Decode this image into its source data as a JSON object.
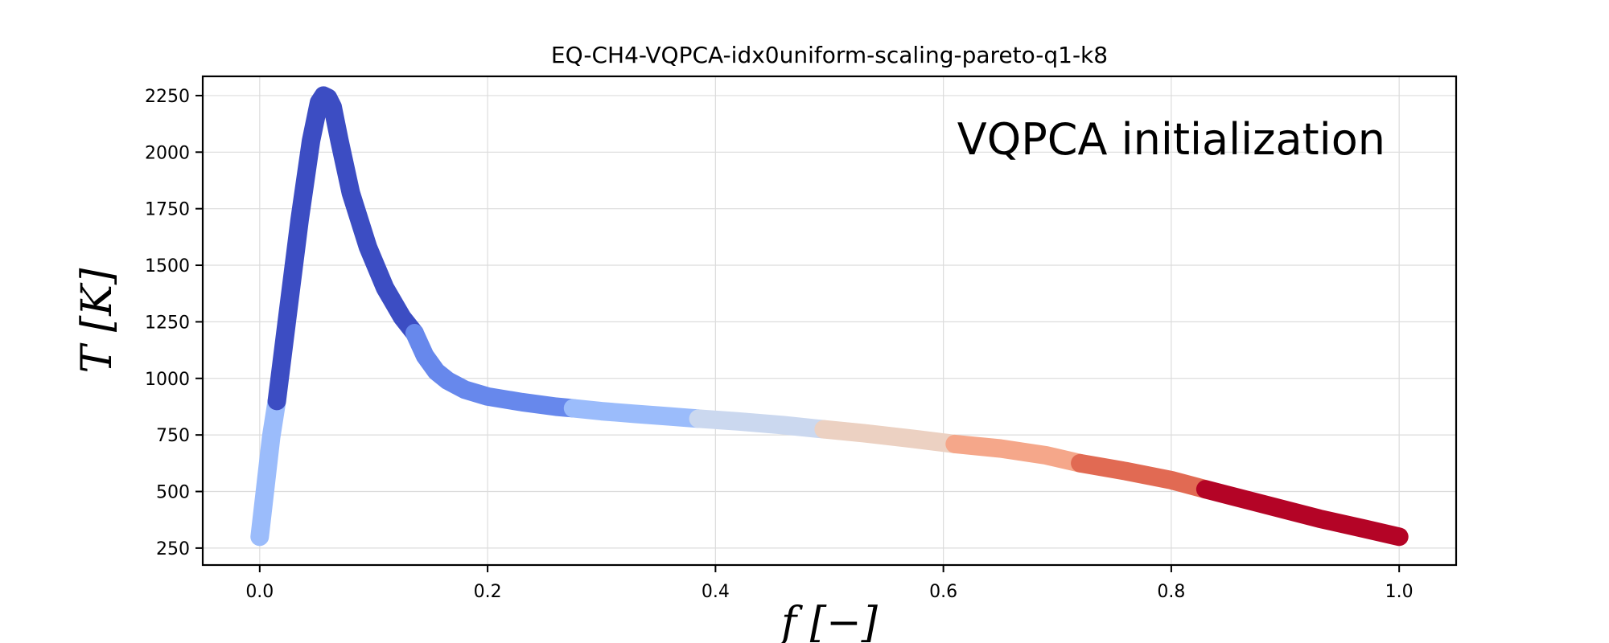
{
  "chart_data": {
    "type": "line",
    "title": "EQ-CH4-VQPCA-idx0uniform-scaling-pareto-q1-k8",
    "annotation": "VQPCA initialization",
    "xlabel": "f [−]",
    "ylabel": "T [K]",
    "xlim": [
      -0.05,
      1.05
    ],
    "ylim": [
      175,
      2335
    ],
    "xticks": [
      0.0,
      0.2,
      0.4,
      0.6,
      0.8,
      1.0
    ],
    "xtick_labels": [
      "0.0",
      "0.2",
      "0.4",
      "0.6",
      "0.8",
      "1.0"
    ],
    "yticks": [
      250,
      500,
      750,
      1000,
      1250,
      1500,
      1750,
      2000,
      2250
    ],
    "ytick_labels": [
      "250",
      "500",
      "750",
      "1000",
      "1250",
      "1500",
      "1750",
      "2000",
      "2250"
    ],
    "grid": true,
    "legend": false,
    "colormap": "coolwarm",
    "series": [
      {
        "cluster": 1,
        "color": "#9bbcfb",
        "x": [
          0.0,
          0.005,
          0.01,
          0.015
        ],
        "y": [
          300,
          520,
          740,
          900
        ]
      },
      {
        "cluster": 2,
        "color": "#3c4dc3",
        "x": [
          0.015,
          0.025,
          0.035,
          0.045,
          0.052,
          0.056,
          0.06,
          0.064,
          0.07,
          0.08,
          0.095,
          0.11,
          0.125,
          0.136
        ],
        "y": [
          900,
          1300,
          1700,
          2050,
          2220,
          2250,
          2240,
          2200,
          2050,
          1820,
          1580,
          1400,
          1270,
          1200
        ]
      },
      {
        "cluster": 3,
        "color": "#6788ec",
        "x": [
          0.136,
          0.145,
          0.155,
          0.165,
          0.18,
          0.2,
          0.23,
          0.26,
          0.275
        ],
        "y": [
          1200,
          1100,
          1030,
          990,
          950,
          920,
          895,
          875,
          868
        ]
      },
      {
        "cluster": 4,
        "color": "#9bbcfb",
        "x": [
          0.275,
          0.3,
          0.33,
          0.36,
          0.385
        ],
        "y": [
          868,
          855,
          843,
          832,
          822
        ]
      },
      {
        "cluster": 5,
        "color": "#cbd8ef",
        "x": [
          0.385,
          0.42,
          0.46,
          0.495
        ],
        "y": [
          822,
          810,
          793,
          775
        ]
      },
      {
        "cluster": 6,
        "color": "#ecd1c2",
        "x": [
          0.495,
          0.53,
          0.57,
          0.61
        ],
        "y": [
          775,
          758,
          735,
          710
        ]
      },
      {
        "cluster": 7,
        "color": "#f5a78a",
        "x": [
          0.61,
          0.65,
          0.69,
          0.72
        ],
        "y": [
          710,
          690,
          660,
          625
        ]
      },
      {
        "cluster": 8,
        "color": "#e16a53",
        "x": [
          0.72,
          0.76,
          0.8,
          0.83
        ],
        "y": [
          625,
          590,
          550,
          510
        ]
      },
      {
        "cluster": 9,
        "color": "#b40426",
        "x": [
          0.83,
          0.88,
          0.93,
          0.97,
          1.0
        ],
        "y": [
          510,
          445,
          380,
          335,
          300
        ]
      }
    ]
  }
}
